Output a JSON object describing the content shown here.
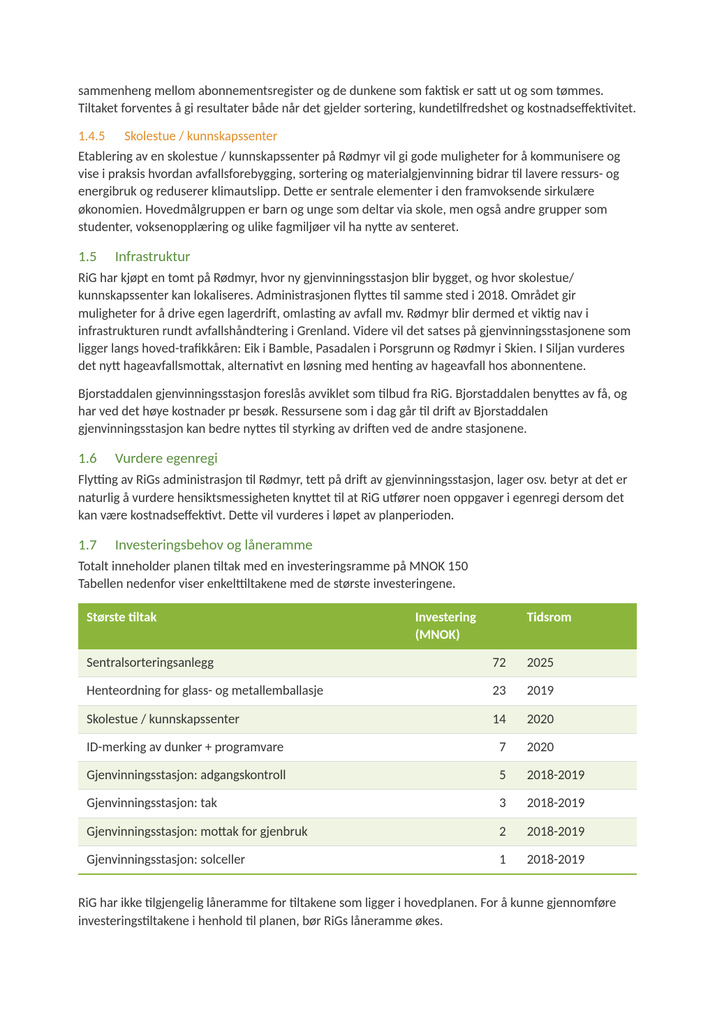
{
  "colors": {
    "background": "#ffffff",
    "body_text": "#333333",
    "heading_section": "#5a8f3c",
    "heading_subsection": "#e08e2b",
    "table_header_bg": "#8bb63b",
    "table_header_text": "#ffffff",
    "table_row_odd_bg": "#eff5e2",
    "table_row_even_bg": "#ffffff",
    "table_row_border": "#d9d9d9",
    "table_bottom_border": "#8bb63b"
  },
  "typography": {
    "font_family": "Calibri",
    "body_size_pt": 11,
    "heading_section_size_pt": 13,
    "heading_sub_size_pt": 11,
    "line_height": 1.33
  },
  "intro_paragraph": "sammenheng mellom abonnementsregister og de dunkene som faktisk er satt ut og som tømmes. Tiltaket forventes å gi resultater både når det gjelder sortering, kundetilfredshet og kostnadseffektivitet.",
  "sections": {
    "s145": {
      "number": "1.4.5",
      "title": "Skolestue / kunnskapssenter",
      "paragraphs": [
        "Etablering av en skolestue / kunnskapssenter på Rødmyr vil gi gode muligheter for å kommunisere og vise i praksis hvordan avfallsforebygging, sortering og materialgjenvinning bidrar til lavere ressurs- og energibruk og reduserer klimautslipp. Dette er sentrale elementer i den framvoksende sirkulære økonomien. Hovedmålgruppen er barn og unge som deltar via skole, men også andre grupper som studenter, voksenopplæring og ulike fagmiljøer vil ha nytte av senteret."
      ]
    },
    "s15": {
      "number": "1.5",
      "title": "Infrastruktur",
      "paragraphs": [
        "RiG har kjøpt en tomt på Rødmyr, hvor ny gjenvinningsstasjon blir bygget, og hvor skolestue/ kunnskapssenter kan lokaliseres. Administrasjonen flyttes til samme sted i 2018. Området gir muligheter for å drive egen lagerdrift, omlasting av avfall mv. Rødmyr blir dermed et viktig nav i infrastrukturen rundt avfallshåndtering i Grenland. Videre vil det satses på gjenvinningsstasjonene som ligger langs hoved-trafikkåren: Eik i Bamble, Pasadalen i Porsgrunn og Rødmyr i Skien. I Siljan vurderes det nytt hageavfallsmottak, alternativt en løsning med henting av hageavfall hos abonnentene.",
        "Bjorstaddalen gjenvinningsstasjon foreslås avviklet som tilbud fra RiG. Bjorstaddalen benyttes av få, og har ved det høye kostnader pr besøk. Ressursene som i dag går til drift av Bjorstaddalen gjenvinningsstasjon kan bedre nyttes til styrking av driften ved de andre stasjonene."
      ]
    },
    "s16": {
      "number": "1.6",
      "title": "Vurdere egenregi",
      "paragraphs": [
        "Flytting av RiGs administrasjon til Rødmyr, tett på drift av gjenvinningsstasjon, lager osv. betyr at det er naturlig å vurdere hensiktsmessigheten knyttet til at RiG utfører noen oppgaver i egenregi dersom det kan være kostnadseffektivt. Dette vil vurderes i løpet av planperioden."
      ]
    },
    "s17": {
      "number": "1.7",
      "title": "Investeringsbehov og låneramme",
      "intro_lines": [
        "Totalt inneholder planen tiltak med en investeringsramme på MNOK 150",
        "Tabellen nedenfor viser enkelttiltakene med de største investeringene."
      ],
      "table": {
        "type": "table",
        "columns": [
          {
            "key": "name",
            "label": "Største tiltak",
            "align": "left",
            "width_pct": 50
          },
          {
            "key": "amount",
            "label": "Investering (MNOK)",
            "align": "right",
            "width_pct": 17
          },
          {
            "key": "period",
            "label": "Tidsrom",
            "align": "left",
            "width_pct": 18
          }
        ],
        "rows": [
          {
            "name": "Sentralsorteringsanlegg",
            "amount": 72,
            "period": "2025"
          },
          {
            "name": "Henteordning for glass- og metallemballasje",
            "amount": 23,
            "period": "2019"
          },
          {
            "name": "Skolestue / kunnskapssenter",
            "amount": 14,
            "period": "2020"
          },
          {
            "name": "ID-merking av dunker + programvare",
            "amount": 7,
            "period": "2020"
          },
          {
            "name": "Gjenvinningsstasjon: adgangskontroll",
            "amount": 5,
            "period": "2018-2019"
          },
          {
            "name": "Gjenvinningsstasjon: tak",
            "amount": 3,
            "period": "2018-2019"
          },
          {
            "name": "Gjenvinningsstasjon: mottak for gjenbruk",
            "amount": 2,
            "period": "2018-2019"
          },
          {
            "name": "Gjenvinningsstasjon: solceller",
            "amount": 1,
            "period": "2018-2019"
          }
        ]
      },
      "closing": "RiG har ikke tilgjengelig låneramme for tiltakene som ligger i hovedplanen. For å kunne gjennomføre investeringstiltakene i henhold til planen, bør RiGs låneramme økes."
    }
  }
}
